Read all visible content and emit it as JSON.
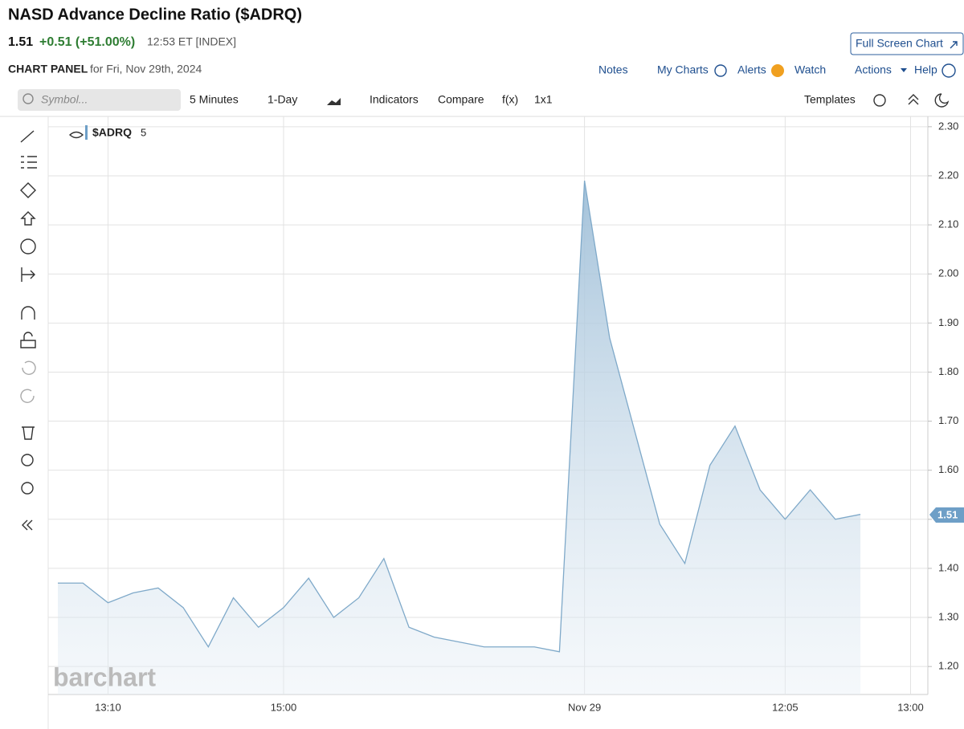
{
  "header": {
    "title": "NASD Advance Decline Ratio ($ADRQ)",
    "price": "1.51",
    "change": "+0.51 (+51.00%)",
    "time": "12:53 ET [INDEX]",
    "full_screen": "Full Screen Chart",
    "panel": "CHART PANEL",
    "panel_date": "for Fri, Nov 29th, 2024"
  },
  "nav": [
    "Notes",
    "My Charts",
    "Alerts",
    "Watch",
    "Actions",
    "Help"
  ],
  "toolbar": {
    "symbol": "Symbol...",
    "interval": "5 Minutes",
    "range": "1-Day",
    "indicators": "Indicators",
    "compare": "Compare",
    "fx": "f(x)",
    "layout": "1x1",
    "templates": "Templates"
  },
  "legend": {
    "symbol": "$ADRQ",
    "period": "5"
  },
  "watermark": "barchart",
  "chart_data": {
    "type": "area",
    "color": "#7fa9c9",
    "categories": [
      null,
      null,
      "13:10",
      null,
      null,
      null,
      null,
      null,
      null,
      "15:00",
      null,
      null,
      null,
      null,
      null,
      null,
      null,
      null,
      null,
      null,
      null,
      "Nov 29",
      null,
      null,
      null,
      null,
      null,
      null,
      null,
      "12:05",
      null,
      null,
      null,
      null,
      "13:00"
    ],
    "values": [
      1.37,
      1.37,
      1.33,
      1.35,
      1.36,
      1.32,
      1.24,
      1.34,
      1.28,
      1.32,
      1.38,
      1.3,
      1.34,
      1.42,
      1.28,
      1.26,
      1.25,
      1.24,
      1.24,
      1.24,
      1.23,
      2.19,
      1.87,
      1.68,
      1.49,
      1.41,
      1.61,
      1.69,
      1.56,
      1.5,
      1.56,
      1.5,
      1.51,
      null,
      null
    ],
    "ylim": [
      1.143,
      2.321
    ],
    "yticks": [
      {
        "value": 1.2,
        "label": "1.20"
      },
      {
        "value": 1.3,
        "label": "1.30"
      },
      {
        "value": 1.4,
        "label": "1.40"
      },
      {
        "value": 1.5,
        "label": "1.50"
      },
      {
        "value": 1.6,
        "label": "1.60"
      },
      {
        "value": 1.7,
        "label": "1.70"
      },
      {
        "value": 1.8,
        "label": "1.80"
      },
      {
        "value": 1.9,
        "label": "1.90"
      },
      {
        "value": 2.0,
        "label": "2.00"
      },
      {
        "value": 2.1,
        "label": "2.10"
      },
      {
        "value": 2.2,
        "label": "2.20"
      },
      {
        "value": 2.3,
        "label": "2.30"
      }
    ],
    "grid": true
  }
}
